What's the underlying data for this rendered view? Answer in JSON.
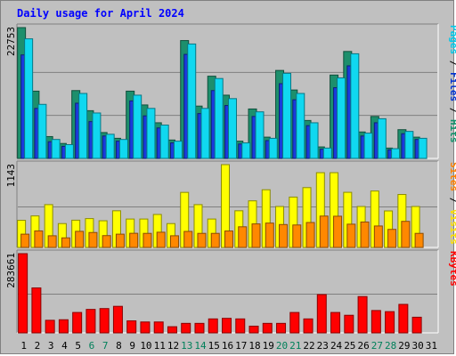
{
  "chart_data": [
    {
      "type": "bar",
      "title": "Daily usage for April 2024",
      "max_label": "22753",
      "categories": [
        "1",
        "2",
        "3",
        "4",
        "5",
        "6",
        "7",
        "8",
        "9",
        "10",
        "11",
        "12",
        "13",
        "14",
        "15",
        "16",
        "17",
        "18",
        "19",
        "20",
        "21",
        "22",
        "23",
        "24",
        "25",
        "26",
        "27",
        "28",
        "29",
        "30",
        "31"
      ],
      "ylim": [
        0,
        22753
      ],
      "legend": [
        {
          "text": "Pages",
          "color": "#00c8e8"
        },
        {
          "text": " / ",
          "color": "#000000"
        },
        {
          "text": "Files",
          "color": "#0030d0"
        },
        {
          "text": " / ",
          "color": "#000000"
        },
        {
          "text": "Hits",
          "color": "#10906a"
        }
      ],
      "series": [
        {
          "name": "Hits",
          "color": "#1d8f6c",
          "values": [
            22753,
            11700,
            3800,
            2600,
            11800,
            8300,
            4500,
            3500,
            11700,
            9300,
            6200,
            3200,
            20500,
            9100,
            14300,
            11000,
            3000,
            8600,
            3700,
            15300,
            11900,
            6600,
            2000,
            14500,
            18600,
            4600,
            7300,
            1800,
            5000,
            3700,
            0
          ]
        },
        {
          "name": "Files",
          "color": "#1a3adc",
          "values": [
            18000,
            8700,
            2900,
            2100,
            9600,
            6400,
            3900,
            3000,
            10000,
            7400,
            5300,
            2700,
            18100,
            7800,
            11800,
            9200,
            2500,
            7300,
            3100,
            13000,
            10200,
            5700,
            1600,
            12300,
            16100,
            3900,
            6200,
            1500,
            4300,
            3300,
            0
          ]
        },
        {
          "name": "Pages",
          "color": "#10d8f0",
          "values": [
            20800,
            9400,
            3300,
            2400,
            11300,
            7900,
            4200,
            3300,
            11000,
            8700,
            5800,
            3000,
            19900,
            8700,
            13900,
            10400,
            2700,
            8100,
            3500,
            14800,
            11300,
            6200,
            1800,
            14000,
            18200,
            4400,
            6900,
            1700,
            4700,
            3500,
            0
          ]
        }
      ]
    },
    {
      "type": "bar",
      "max_label": "1143",
      "categories": [
        "1",
        "2",
        "3",
        "4",
        "5",
        "6",
        "7",
        "8",
        "9",
        "10",
        "11",
        "12",
        "13",
        "14",
        "15",
        "16",
        "17",
        "18",
        "19",
        "20",
        "21",
        "22",
        "23",
        "24",
        "25",
        "26",
        "27",
        "28",
        "29",
        "30",
        "31"
      ],
      "ylim": [
        0,
        1143
      ],
      "legend": [
        {
          "text": "Sites",
          "color": "#ff8000"
        },
        {
          "text": " / ",
          "color": "#000000"
        },
        {
          "text": "Visits",
          "color": "#ffe000"
        }
      ],
      "series": [
        {
          "name": "Visits",
          "color": "#ffff00",
          "values": [
            374,
            435,
            591,
            329,
            376,
            398,
            368,
            506,
            392,
            392,
            455,
            329,
            760,
            591,
            392,
            1143,
            506,
            643,
            796,
            565,
            695,
            826,
            1032,
            1032,
            761,
            565,
            779,
            504,
            731,
            565,
            0
          ]
        },
        {
          "name": "Sites",
          "color": "#ff8800",
          "values": [
            183,
            228,
            161,
            132,
            222,
            206,
            163,
            183,
            195,
            194,
            210,
            161,
            221,
            194,
            194,
            227,
            285,
            325,
            336,
            316,
            310,
            344,
            433,
            431,
            321,
            351,
            296,
            249,
            360,
            194,
            0
          ]
        }
      ]
    },
    {
      "type": "bar",
      "max_label": "283661",
      "categories": [
        "1",
        "2",
        "3",
        "4",
        "5",
        "6",
        "7",
        "8",
        "9",
        "10",
        "11",
        "12",
        "13",
        "14",
        "15",
        "16",
        "17",
        "18",
        "19",
        "20",
        "21",
        "22",
        "23",
        "24",
        "25",
        "26",
        "27",
        "28",
        "29",
        "30",
        "31"
      ],
      "ylim": [
        0,
        283661
      ],
      "legend": [
        {
          "text": "KBytes",
          "color": "#ff0000"
        }
      ],
      "series": [
        {
          "name": "KBytes",
          "color": "#ff0000",
          "values": [
            283661,
            161000,
            45000,
            47000,
            73000,
            84000,
            87000,
            95000,
            43000,
            39000,
            39000,
            22000,
            34000,
            34000,
            50000,
            52000,
            50000,
            24000,
            34000,
            34000,
            73000,
            50000,
            137000,
            73000,
            63000,
            130000,
            80000,
            76000,
            102000,
            56000,
            0
          ]
        }
      ]
    }
  ],
  "weekend_days": [
    6,
    7,
    13,
    14,
    20,
    21,
    27,
    28
  ],
  "day_colors": {
    "weekday": "#000000",
    "weekend": "#00805a"
  }
}
